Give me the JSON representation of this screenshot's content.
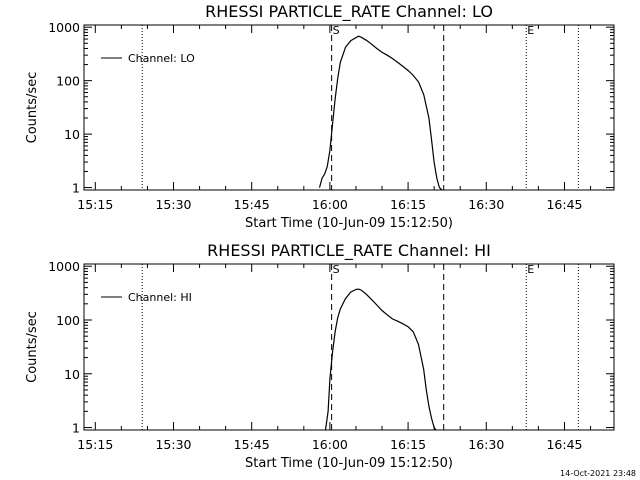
{
  "footer": {
    "timestamp": "14-Oct-2021 23:48"
  },
  "chart_data": [
    {
      "type": "line",
      "title": "RHESSI PARTICLE_RATE Channel: LO",
      "xlabel": "Start Time (10-Jun-09 15:12:50)",
      "ylabel": "Counts/sec",
      "yscale": "log",
      "ylim": [
        0.9,
        1100
      ],
      "xlim": [
        "15:12:50",
        "16:54:30"
      ],
      "x_ticks": [
        "15:15",
        "15:30",
        "15:45",
        "16:00",
        "16:15",
        "16:30",
        "16:45"
      ],
      "y_ticks": [
        "1",
        "10",
        "100",
        "1000"
      ],
      "legend": {
        "position": "top-left",
        "entries": [
          "Channel: LO"
        ]
      },
      "series": [
        {
          "name": "Channel: LO",
          "x": [
            "15:58:00",
            "15:58:30",
            "15:59:00",
            "15:59:30",
            "16:00:00",
            "16:00:30",
            "16:01:00",
            "16:01:30",
            "16:02:00",
            "16:03:00",
            "16:04:00",
            "16:05:00",
            "16:05:30",
            "16:06:00",
            "16:07:00",
            "16:08:00",
            "16:09:00",
            "16:10:00",
            "16:11:00",
            "16:12:00",
            "16:13:00",
            "16:14:00",
            "16:15:00",
            "16:16:00",
            "16:17:00",
            "16:18:00",
            "16:19:00",
            "16:19:30",
            "16:20:00",
            "16:20:30",
            "16:21:00",
            "16:21:30"
          ],
          "values": [
            1,
            1.5,
            1.8,
            2.5,
            5,
            15,
            45,
            110,
            220,
            420,
            560,
            640,
            680,
            650,
            570,
            480,
            400,
            340,
            300,
            260,
            220,
            185,
            155,
            125,
            95,
            55,
            20,
            8,
            3,
            1.5,
            1,
            0.9
          ]
        }
      ],
      "markers": [
        {
          "label": "",
          "x": "15:24:00",
          "style": "dotted"
        },
        {
          "label": "S",
          "x": "16:00:20",
          "style": "dashed"
        },
        {
          "label": "",
          "x": "16:21:50",
          "style": "dashed"
        },
        {
          "label": "E",
          "x": "16:37:40",
          "style": "dotted"
        },
        {
          "label": "",
          "x": "16:47:40",
          "style": "dotted"
        }
      ]
    },
    {
      "type": "line",
      "title": "RHESSI PARTICLE_RATE Channel: HI",
      "xlabel": "Start Time (10-Jun-09 15:12:50)",
      "ylabel": "Counts/sec",
      "yscale": "log",
      "ylim": [
        0.9,
        1100
      ],
      "xlim": [
        "15:12:50",
        "16:54:30"
      ],
      "x_ticks": [
        "15:15",
        "15:30",
        "15:45",
        "16:00",
        "16:15",
        "16:30",
        "16:45"
      ],
      "y_ticks": [
        "1",
        "10",
        "100",
        "1000"
      ],
      "legend": {
        "position": "top-left",
        "entries": [
          "Channel: HI"
        ]
      },
      "series": [
        {
          "name": "Channel: HI",
          "x": [
            "15:59:10",
            "15:59:40",
            "16:00:00",
            "16:00:30",
            "16:01:00",
            "16:01:30",
            "16:02:00",
            "16:03:00",
            "16:04:00",
            "16:05:00",
            "16:05:30",
            "16:06:00",
            "16:07:00",
            "16:08:00",
            "16:09:00",
            "16:10:00",
            "16:11:00",
            "16:12:00",
            "16:13:00",
            "16:14:00",
            "16:15:00",
            "16:16:00",
            "16:17:00",
            "16:18:00",
            "16:18:30",
            "16:19:00",
            "16:19:30",
            "16:20:00",
            "16:20:20"
          ],
          "values": [
            0.9,
            2,
            8,
            25,
            60,
            110,
            160,
            250,
            330,
            370,
            375,
            360,
            300,
            240,
            190,
            150,
            125,
            105,
            95,
            85,
            75,
            60,
            35,
            12,
            5,
            2.5,
            1.5,
            1,
            0.9
          ]
        }
      ],
      "markers": [
        {
          "label": "",
          "x": "15:24:00",
          "style": "dotted"
        },
        {
          "label": "S",
          "x": "16:00:20",
          "style": "dashed"
        },
        {
          "label": "",
          "x": "16:21:50",
          "style": "dashed"
        },
        {
          "label": "E",
          "x": "16:37:40",
          "style": "dotted"
        },
        {
          "label": "",
          "x": "16:47:40",
          "style": "dotted"
        }
      ]
    }
  ]
}
